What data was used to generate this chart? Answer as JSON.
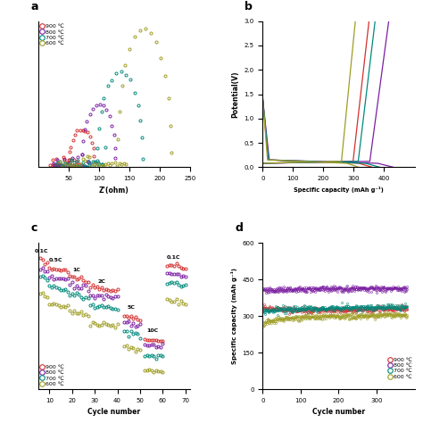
{
  "colors": {
    "900": "#d32f2f",
    "800": "#7b1fa2",
    "700": "#00897b",
    "600": "#9e9d24"
  },
  "panel_a": {
    "title": "a",
    "xlabel": "Z'(ohm)",
    "xlim": [
      0,
      250
    ],
    "xticks": [
      50,
      100,
      150,
      200,
      250
    ],
    "legend_labels": [
      "900 ℃",
      "800 ℃",
      "700 ℃",
      "600 ℃"
    ]
  },
  "panel_b": {
    "title": "b",
    "xlabel": "Specific capacity (mAh g⁻¹)",
    "ylabel": "Potential(V)",
    "xlim": [
      0,
      500
    ],
    "ylim": [
      0,
      3.0
    ],
    "yticks": [
      0.0,
      0.5,
      1.0,
      1.5,
      2.0,
      2.5,
      3.0
    ],
    "xticks": [
      0,
      100,
      200,
      300,
      400
    ]
  },
  "panel_c": {
    "title": "c",
    "xlabel": "Cycle number",
    "xlim": [
      5,
      72
    ],
    "xticks": [
      10,
      20,
      30,
      40,
      50,
      60,
      70
    ],
    "legend_labels": [
      "900 ℃",
      "800 ℃",
      "700 ℃",
      "600 ℃"
    ]
  },
  "panel_d": {
    "title": "d",
    "xlabel": "Cycle number",
    "ylabel": "Specific capacity (mAh g⁻¹)",
    "xlim": [
      0,
      400
    ],
    "ylim": [
      0,
      600
    ],
    "yticks": [
      0,
      150,
      300,
      450,
      600
    ],
    "xticks": [
      0,
      100,
      200,
      300
    ],
    "legend_labels": [
      "900 ℃",
      "800 ℃",
      "700 ℃",
      "600 ℃"
    ]
  }
}
